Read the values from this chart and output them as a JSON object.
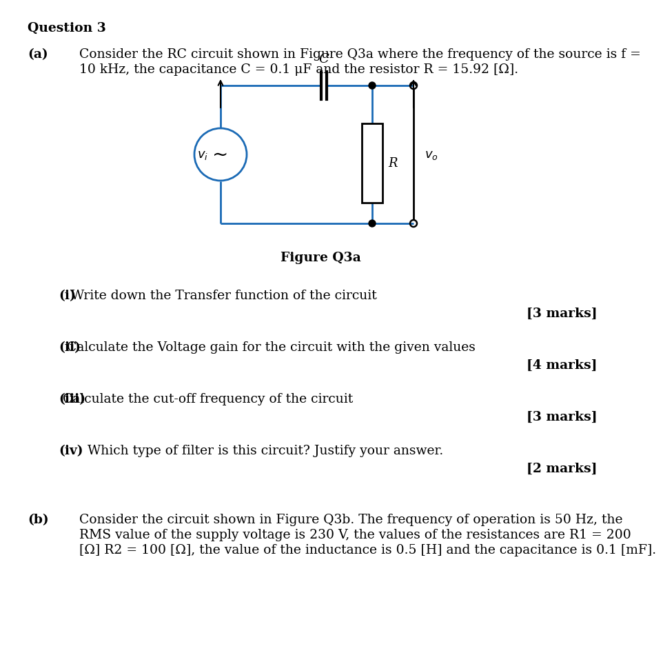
{
  "title": "Question 3",
  "bg_color": "#ffffff",
  "text_color": "#000000",
  "circuit_color": "#1a6ab5",
  "fig_width": 8.86,
  "fig_height": 9.28,
  "part_a_label": "(a)",
  "part_a_text_line1": "Consider the RC circuit shown in Figure Q3a where the frequency of the source is f =",
  "part_a_text_line2": "10 kHz, the capacitance C = 0.1 μF and the resistor R = 15.92 [Ω].",
  "figure_caption": "Figure Q3a",
  "q_i_label": "(i)",
  "q_i_text": "   Write down the Transfer function of the circuit",
  "q_i_marks": "[3 marks]",
  "q_ii_label": "(ii)",
  "q_ii_text": "  Calculate the Voltage gain for the circuit with the given values",
  "q_ii_marks": "[4 marks]",
  "q_iii_label": "(iii)",
  "q_iii_text": " Calculate the cut-off frequency of the circuit",
  "q_iii_marks": "[3 marks]",
  "q_iv_label": "(iv)",
  "q_iv_text": "Which type of filter is this circuit? Justify your answer.",
  "q_iv_marks": "[2 marks]",
  "part_b_label": "(b)",
  "part_b_text_line1": "Consider the circuit shown in Figure Q3b. The frequency of operation is 50 Hz, the",
  "part_b_text_line2": "RMS value of the supply voltage is 230 V, the values of the resistances are R1 = 200",
  "part_b_text_line3": "[Ω] R2 = 100 [Ω], the value of the inductance is 0.5 [H] and the capacitance is 0.1 [mF]."
}
